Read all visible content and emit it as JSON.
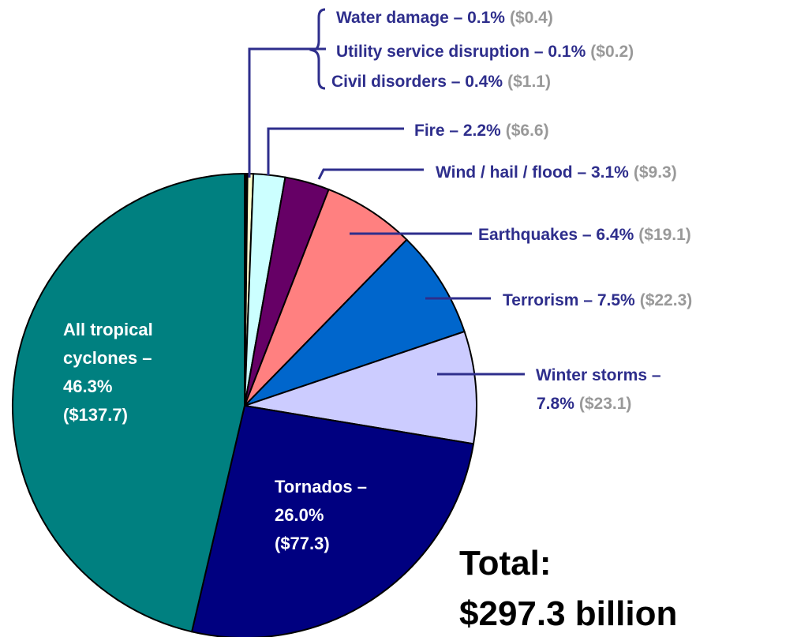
{
  "chart_data": {
    "type": "pie",
    "title": "",
    "slices": [
      {
        "name": "All tropical cyclones",
        "pct": 46.3,
        "pct_label": "46.3%",
        "value": 137.7,
        "value_label": "($137.7)",
        "color": "#008080"
      },
      {
        "name": "Tornados",
        "pct": 26.0,
        "pct_label": "26.0%",
        "value": 77.3,
        "value_label": "($77.3)",
        "color": "#000080"
      },
      {
        "name": "Winter storms",
        "pct": 7.8,
        "pct_label": "7.8%",
        "value": 23.1,
        "value_label": "($23.1)",
        "color": "#ccccff"
      },
      {
        "name": "Terrorism",
        "pct": 7.5,
        "pct_label": "7.5%",
        "value": 22.3,
        "value_label": "($22.3)",
        "color": "#0066cc"
      },
      {
        "name": "Earthquakes",
        "pct": 6.4,
        "pct_label": "6.4%",
        "value": 19.1,
        "value_label": "($19.1)",
        "color": "#ff8080"
      },
      {
        "name": "Wind / hail / flood",
        "pct": 3.1,
        "pct_label": "3.1%",
        "value": 9.3,
        "value_label": "($9.3)",
        "color": "#660066"
      },
      {
        "name": "Fire",
        "pct": 2.2,
        "pct_label": "2.2%",
        "value": 6.6,
        "value_label": "($6.6)",
        "color": "#ccffff"
      },
      {
        "name": "Civil disorders",
        "pct": 0.4,
        "pct_label": "0.4%",
        "value": 1.1,
        "value_label": "($1.1)",
        "color": "#ffffcc"
      },
      {
        "name": "Utility service disruption",
        "pct": 0.1,
        "pct_label": "0.1%",
        "value": 0.2,
        "value_label": "($0.2)",
        "color": "#000000"
      },
      {
        "name": "Water damage",
        "pct": 0.1,
        "pct_label": "0.1%",
        "value": 0.4,
        "value_label": "($0.4)",
        "color": "#000000"
      }
    ],
    "labels": {
      "water_damage": {
        "main": "Water damage – 0.1%",
        "amount": "($0.4)"
      },
      "utility": {
        "main": "Utility service disruption – 0.1%",
        "amount": "($0.2)"
      },
      "civil": {
        "main": "Civil disorders – 0.4%",
        "amount": "($1.1)"
      },
      "fire": {
        "main": "Fire – 2.2%",
        "amount": "($6.6)"
      },
      "wind": {
        "main": "Wind / hail / flood – 3.1%",
        "amount": "($9.3)"
      },
      "earthquakes": {
        "main": "Earthquakes – 6.4%",
        "amount": "($19.1)"
      },
      "terrorism": {
        "main": "Terrorism – 7.5%",
        "amount": "($22.3)"
      },
      "winter": {
        "line1": "Winter storms –",
        "pct": "7.8%",
        "amount": "($23.1)"
      },
      "cyclones": {
        "line1": "All tropical",
        "line2": "cyclones –",
        "line3": "46.3%",
        "line4": "($137.7)"
      },
      "tornados": {
        "line1": "Tornados –",
        "line2": "26.0%",
        "line3": "($77.3)"
      }
    },
    "total": {
      "label": "Total:",
      "amount": "$297.3 billion"
    },
    "colors": {
      "label_text": "#2e2e8c",
      "amount_text": "#999999",
      "leader": "#2e2e8c"
    }
  }
}
